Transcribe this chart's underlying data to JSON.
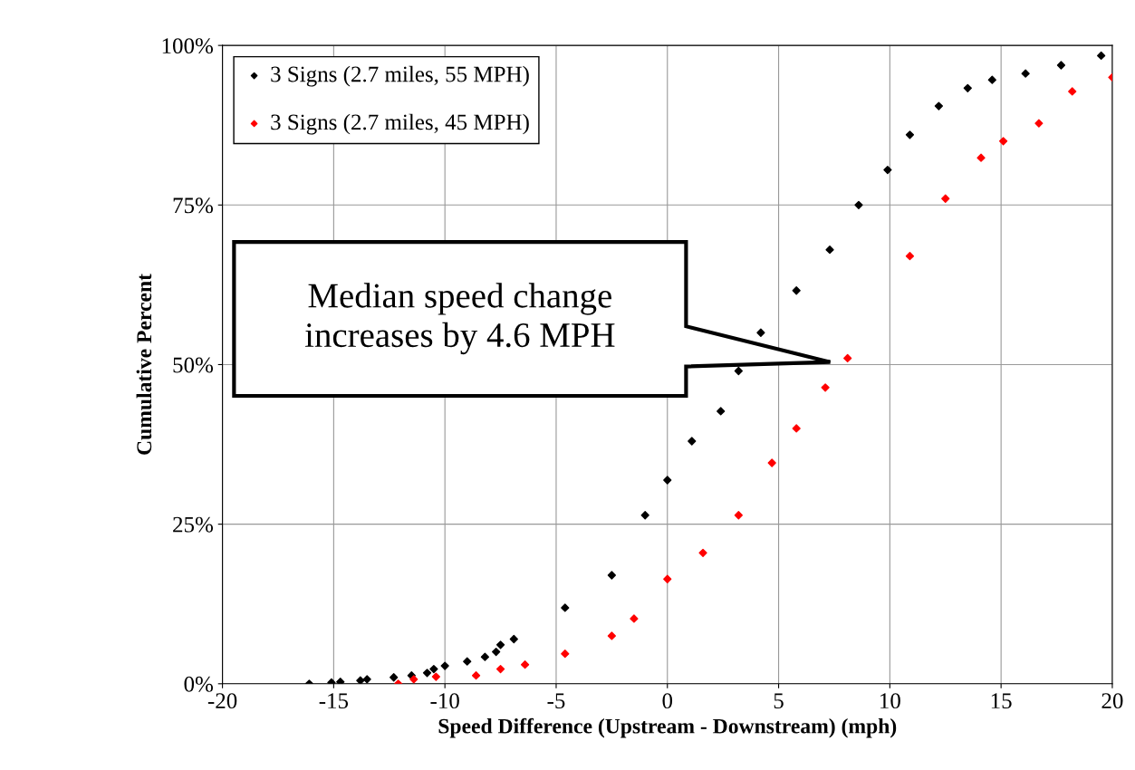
{
  "chart_data": {
    "type": "scatter",
    "xlabel": "Speed Difference (Upstream - Downstream) (mph)",
    "ylabel": "Cumulative Percent",
    "xlim": [
      -20,
      20
    ],
    "xticks": [
      -20,
      -15,
      -10,
      -5,
      0,
      5,
      10,
      15,
      20
    ],
    "ylim": [
      0,
      100
    ],
    "yticks": [
      {
        "value": 0,
        "label": "0%"
      },
      {
        "value": 25,
        "label": "25%"
      },
      {
        "value": 50,
        "label": "50%"
      },
      {
        "value": 75,
        "label": "75%"
      },
      {
        "value": 100,
        "label": "100%"
      }
    ],
    "grid": true,
    "legend": "top left",
    "marker": "diamond",
    "series": [
      {
        "name": "3 Signs (2.7 miles, 55 MPH)",
        "color": "#000000",
        "x": [
          -16.1,
          -15.1,
          -14.7,
          -13.8,
          -13.5,
          -12.3,
          -11.5,
          -10.8,
          -10.5,
          -10.0,
          -9.0,
          -8.2,
          -7.7,
          -7.5,
          -6.9,
          -4.6,
          -2.5,
          -1.0,
          0.0,
          1.1,
          2.4,
          3.2,
          4.2,
          5.8,
          7.3,
          8.6,
          9.9,
          10.9,
          12.2,
          13.5,
          14.6,
          16.1,
          17.7,
          19.5
        ],
        "values": [
          0,
          0.2,
          0.3,
          0.5,
          0.7,
          1.0,
          1.3,
          1.7,
          2.3,
          2.8,
          3.5,
          4.2,
          5.0,
          6.1,
          7.0,
          11.9,
          17.0,
          26.4,
          31.9,
          38.0,
          42.7,
          49.0,
          55.0,
          61.6,
          68.0,
          75.0,
          80.5,
          86.0,
          90.5,
          93.3,
          94.6,
          95.6,
          96.9,
          98.4
        ]
      },
      {
        "name": "3 Signs (2.7 miles, 45 MPH)",
        "color": "#ff0000",
        "x": [
          -12.1,
          -11.4,
          -10.4,
          -8.6,
          -7.5,
          -6.4,
          -4.6,
          -2.5,
          -1.5,
          0.0,
          1.6,
          3.2,
          4.7,
          5.8,
          7.1,
          8.1,
          10.9,
          12.5,
          14.1,
          15.1,
          16.7,
          18.2,
          20.0
        ],
        "values": [
          0,
          0.7,
          1.1,
          1.3,
          2.3,
          3.0,
          4.7,
          7.5,
          10.2,
          16.4,
          20.5,
          26.4,
          34.6,
          40.0,
          46.4,
          51.0,
          67.0,
          76.0,
          82.4,
          85.0,
          87.8,
          92.8,
          95.0
        ]
      }
    ],
    "annotations": [
      "Median speed change\nincreases by 4.6 MPH"
    ]
  }
}
